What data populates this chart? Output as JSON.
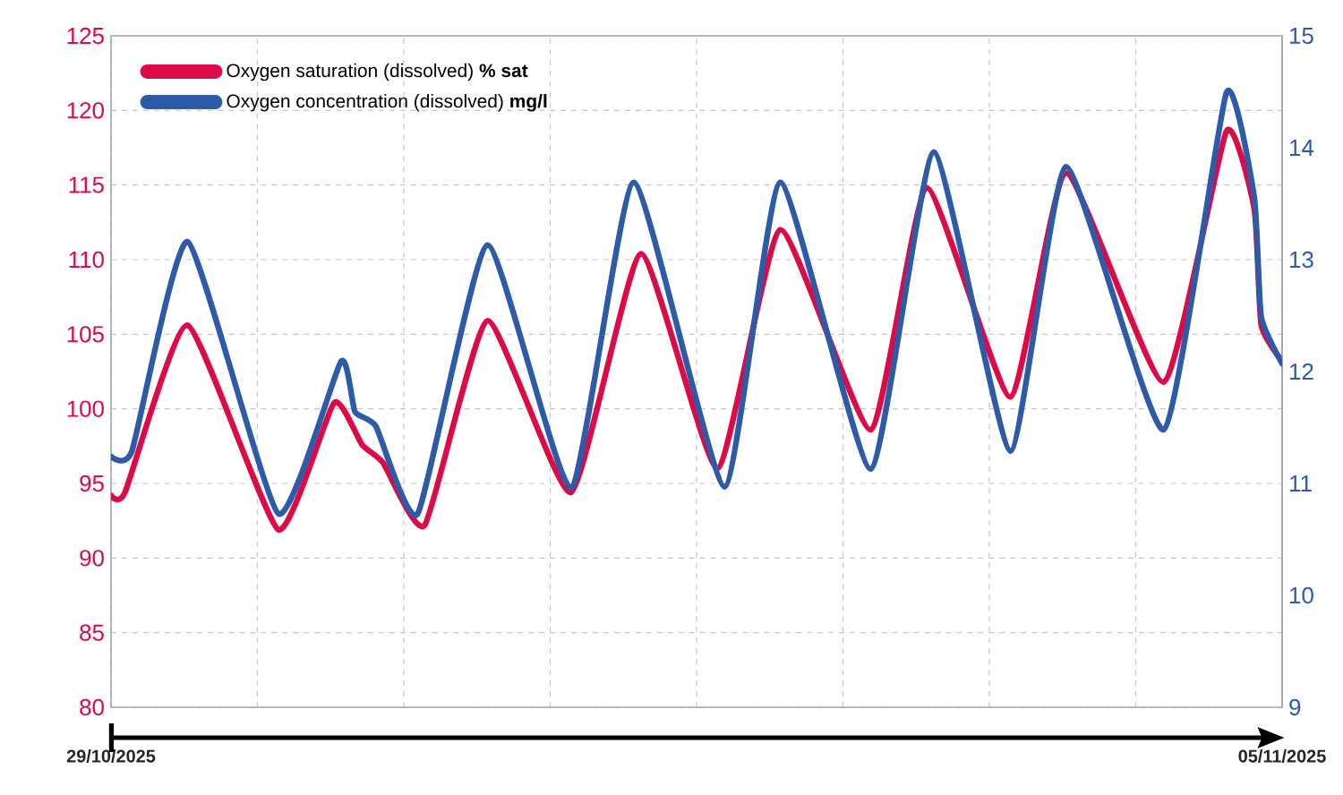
{
  "chart_data": {
    "type": "line",
    "xlim": [
      "2025-10-29T00:00",
      "2025-11-05T00:00"
    ],
    "xticks": [
      {
        "value": "2025-10-29T00:00",
        "label": "29/10/2025"
      },
      {
        "value": "2025-10-29T21:00",
        "label": null
      },
      {
        "value": "2025-10-30T18:00",
        "label": null
      },
      {
        "value": "2025-10-31T15:00",
        "label": null
      },
      {
        "value": "2025-11-01T12:00",
        "label": null
      },
      {
        "value": "2025-11-02T09:00",
        "label": null
      },
      {
        "value": "2025-11-03T06:00",
        "label": null
      },
      {
        "value": "2025-11-04T03:00",
        "label": null
      },
      {
        "value": "2025-11-05T00:00",
        "label": "05/11/2025"
      }
    ],
    "ylim": [
      80,
      125
    ],
    "yticks": [
      80,
      85,
      90,
      95,
      100,
      105,
      110,
      115,
      120,
      125
    ],
    "y2lim": [
      9,
      15
    ],
    "y2ticks": [
      9,
      10,
      11,
      12,
      13,
      14,
      15
    ],
    "grid": true,
    "legend": "top left",
    "line_style": "solid",
    "series": [
      {
        "name": "Oxygen saturation (dissolved) **% sat**",
        "color": "#dc0a47",
        "x": [
          "2025-10-29T00:00",
          "2025-10-29T02:00",
          "2025-10-29T11:00",
          "2025-10-30T00:00",
          "2025-10-30T08:00",
          "2025-10-30T12:00",
          "2025-10-30T15:00",
          "2025-10-30T21:00",
          "2025-10-31T06:00",
          "2025-10-31T18:00",
          "2025-11-01T04:00",
          "2025-11-01T15:00",
          "2025-11-02T00:00",
          "2025-11-02T13:00",
          "2025-11-02T21:00",
          "2025-11-03T09:00",
          "2025-11-03T17:00",
          "2025-11-04T07:00",
          "2025-11-04T16:00",
          "2025-11-04T20:00",
          "2025-11-04T21:00",
          "2025-11-05T00:00"
        ],
        "values": [
          94.2,
          94.4,
          105.6,
          91.9,
          100.4,
          97.6,
          96.4,
          92.2,
          105.9,
          94.4,
          110.4,
          96.0,
          112.0,
          98.6,
          114.8,
          100.8,
          115.8,
          101.8,
          118.6,
          113.4,
          105.6,
          103.2
        ]
      },
      {
        "name": "Oxygen concentration (dissolved) **mg/l**",
        "color": "#2e5ba8",
        "axis": "y2",
        "x": [
          "2025-10-29T00:00",
          "2025-10-29T03:00",
          "2025-10-29T11:00",
          "2025-10-30T00:00",
          "2025-10-30T09:00",
          "2025-10-30T11:00",
          "2025-10-30T14:00",
          "2025-10-30T20:00",
          "2025-10-31T06:00",
          "2025-10-31T18:00",
          "2025-11-01T03:00",
          "2025-11-01T16:00",
          "2025-11-02T00:00",
          "2025-11-02T13:00",
          "2025-11-02T22:00",
          "2025-11-03T09:00",
          "2025-11-03T17:00",
          "2025-11-04T07:00",
          "2025-11-04T16:00",
          "2025-11-04T20:00",
          "2025-11-04T21:00",
          "2025-11-05T00:00"
        ],
        "values": [
          11.24,
          11.29,
          13.16,
          10.73,
          12.09,
          11.64,
          11.51,
          10.73,
          13.13,
          10.96,
          13.69,
          10.97,
          13.69,
          11.13,
          13.96,
          11.29,
          13.83,
          11.48,
          14.49,
          13.56,
          12.49,
          12.07
        ]
      }
    ]
  }
}
